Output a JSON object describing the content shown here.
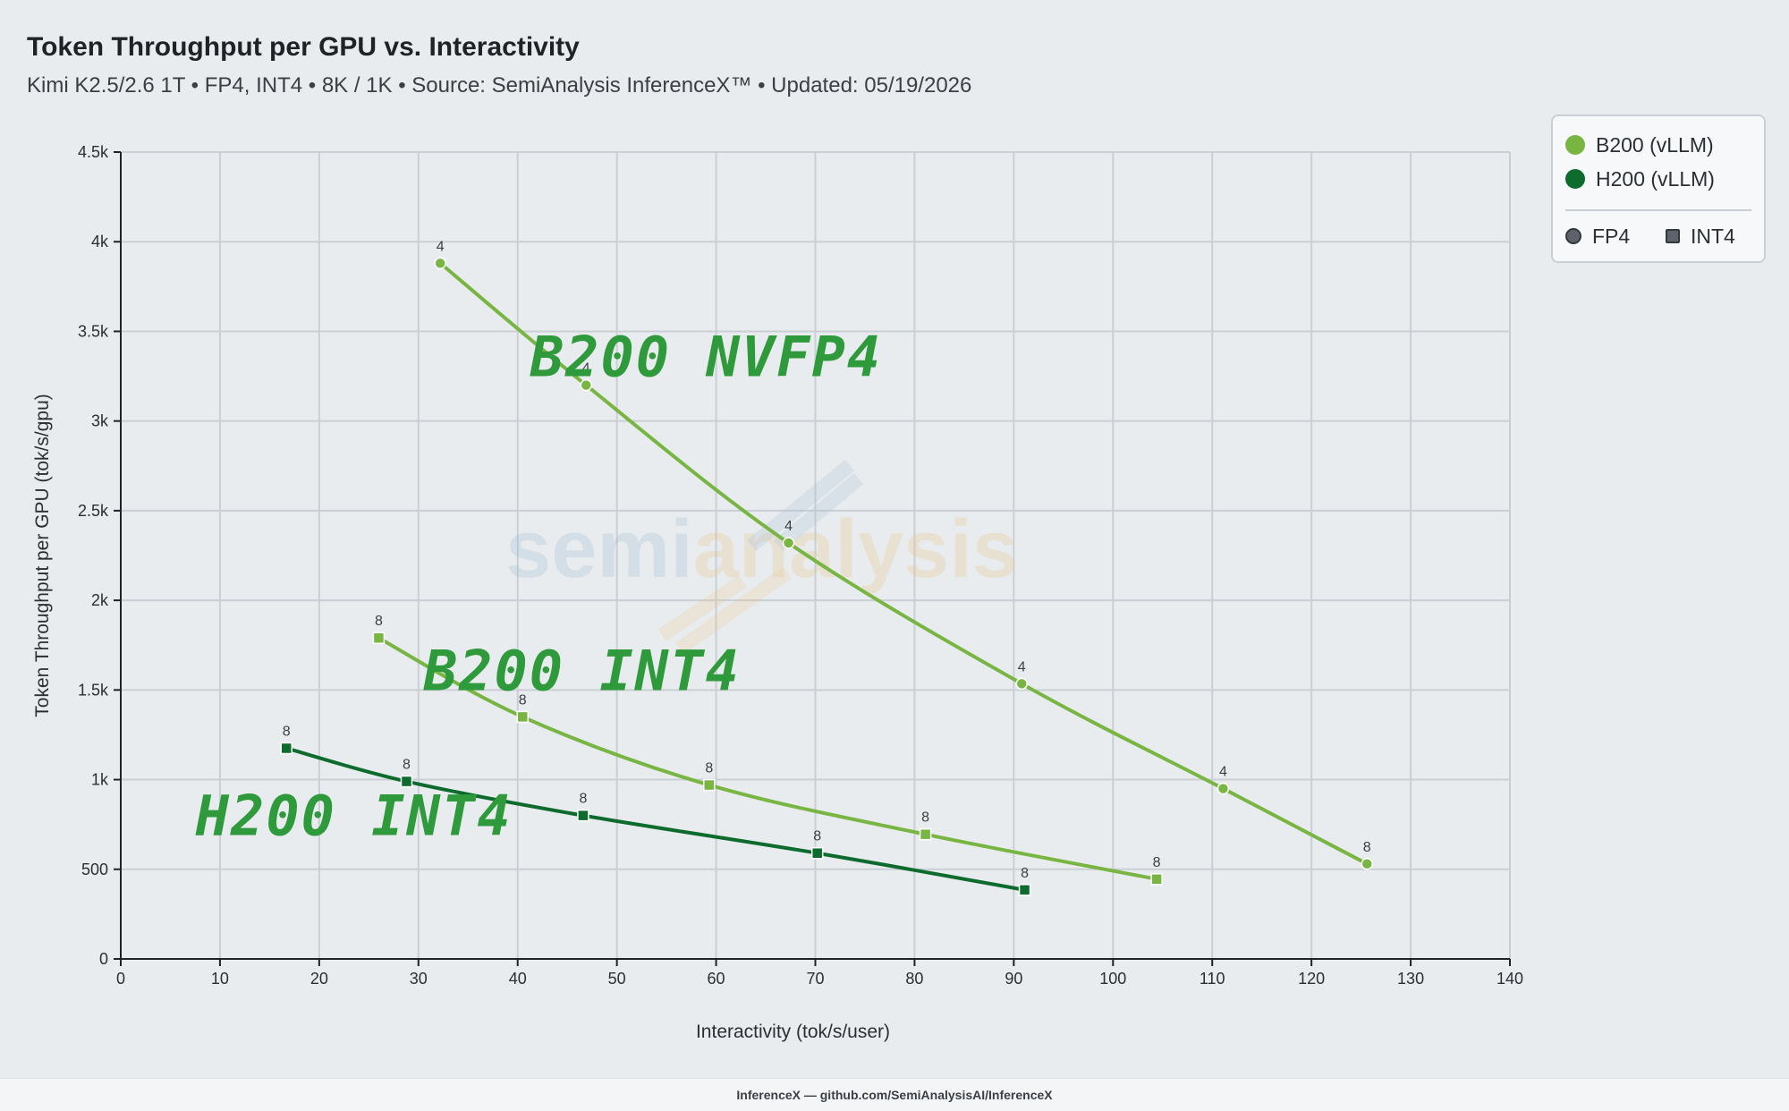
{
  "header": {
    "title": "Token Throughput per GPU vs. Interactivity",
    "subtitle": "Kimi K2.5/2.6 1T • FP4, INT4 • 8K / 1K • Source: SemiAnalysis InferenceX™ • Updated: 05/19/2026"
  },
  "footer": {
    "text": "InferenceX — github.com/SemiAnalysisAI/InferenceX"
  },
  "legend": {
    "hardware": [
      {
        "label": "B200 (vLLM)",
        "color": "#78b542"
      },
      {
        "label": "H200 (vLLM)",
        "color": "#0d6b2e"
      }
    ],
    "precision": [
      {
        "label": "FP4",
        "shape": "circle"
      },
      {
        "label": "INT4",
        "shape": "square"
      }
    ]
  },
  "watermark": {
    "part1": "semi",
    "part2": "analysis"
  },
  "annotations": [
    {
      "text": "B200 NVFP4",
      "x": 59,
      "y": 3250
    },
    {
      "text": "B200 INT4",
      "x": 46.5,
      "y": 1500
    },
    {
      "text": "H200 INT4",
      "x": 23.5,
      "y": 690
    }
  ],
  "chart_data": {
    "type": "line",
    "title": "Token Throughput per GPU vs. Interactivity",
    "xlabel": "Interactivity (tok/s/user)",
    "ylabel": "Token Throughput per GPU (tok/s/gpu)",
    "xlim": [
      0,
      140
    ],
    "ylim": [
      0,
      4500
    ],
    "xticks": [
      0,
      10,
      20,
      30,
      40,
      50,
      60,
      70,
      80,
      90,
      100,
      110,
      120,
      130,
      140
    ],
    "yticks": [
      0,
      500,
      1000,
      1500,
      2000,
      2500,
      3000,
      3500,
      4000,
      4500
    ],
    "ytick_labels": [
      "0",
      "500",
      "1k",
      "1.5k",
      "2k",
      "2.5k",
      "3k",
      "3.5k",
      "4k",
      "4.5k"
    ],
    "grid": true,
    "legend_position": "top-right",
    "series": [
      {
        "name": "B200 (vLLM) FP4",
        "color": "#78b542",
        "marker": "circle",
        "points": [
          {
            "x": 32.2,
            "y": 3880,
            "label": "4"
          },
          {
            "x": 46.9,
            "y": 3200,
            "label": "4"
          },
          {
            "x": 67.3,
            "y": 2320,
            "label": "4"
          },
          {
            "x": 90.8,
            "y": 1535,
            "label": "4"
          },
          {
            "x": 111.1,
            "y": 950,
            "label": "4"
          },
          {
            "x": 125.6,
            "y": 530,
            "label": "8"
          }
        ]
      },
      {
        "name": "B200 (vLLM) INT4",
        "color": "#78b542",
        "marker": "square",
        "points": [
          {
            "x": 26.0,
            "y": 1790,
            "label": "8"
          },
          {
            "x": 40.5,
            "y": 1350,
            "label": "8"
          },
          {
            "x": 59.3,
            "y": 970,
            "label": "8"
          },
          {
            "x": 81.1,
            "y": 695,
            "label": "8"
          },
          {
            "x": 104.4,
            "y": 445,
            "label": "8"
          }
        ]
      },
      {
        "name": "H200 (vLLM) INT4",
        "color": "#0d6b2e",
        "marker": "square",
        "points": [
          {
            "x": 16.7,
            "y": 1175,
            "label": "8"
          },
          {
            "x": 28.8,
            "y": 990,
            "label": "8"
          },
          {
            "x": 46.6,
            "y": 800,
            "label": "8"
          },
          {
            "x": 70.2,
            "y": 590,
            "label": "8"
          },
          {
            "x": 91.1,
            "y": 385,
            "label": "8"
          }
        ]
      }
    ]
  }
}
